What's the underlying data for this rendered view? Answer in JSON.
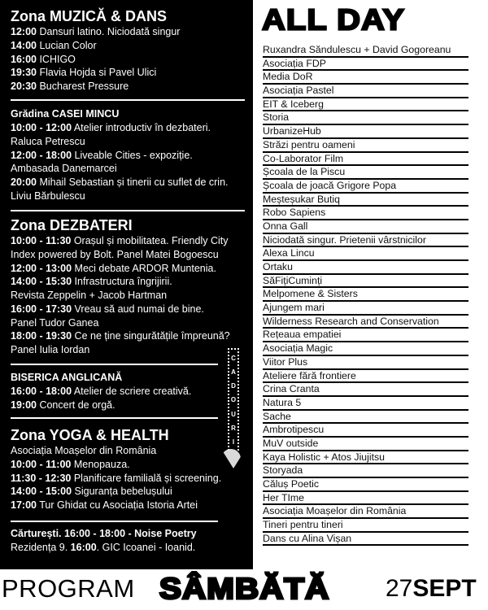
{
  "muzica": {
    "title": "Zona MUZICĂ & DANS",
    "items": [
      {
        "time": "12:00",
        "text": " Dansuri latino. Niciodată singur"
      },
      {
        "time": "14:00",
        "text": " Lucian Color"
      },
      {
        "time": "16:00",
        "text": " ICHIGO"
      },
      {
        "time": "19:30",
        "text": " Flavia Hojda si Pavel Ulici"
      },
      {
        "time": "20:30",
        "text": " Bucharest Pressure"
      }
    ]
  },
  "mincu": {
    "title": "Grădina CASEI MINCU",
    "items": [
      {
        "time": "10:00 - 12:00",
        "text": " Atelier introductiv în dezbateri."
      },
      {
        "time": "",
        "text": "Raluca Petrescu"
      },
      {
        "time": "12:00 - 18:00",
        "text": " Liveable Cities - expoziție."
      },
      {
        "time": "",
        "text": "Ambasada Danemarcei"
      },
      {
        "time": "20:00",
        "text": " Mihail Sebastian și tinerii cu suflet de crin."
      },
      {
        "time": "",
        "text": "Liviu Bărbulescu"
      }
    ]
  },
  "dezbateri": {
    "title": "Zona DEZBATERI",
    "items": [
      {
        "time": "10:00 - 11:30",
        "text": " Orașul și mobilitatea. Friendly City"
      },
      {
        "time": "",
        "text": "Index powered by Bolt. Panel Matei Bogoescu"
      },
      {
        "time": "12:00 - 13:00",
        "text": " Meci debate ARDOR Muntenia."
      },
      {
        "time": "14:00 - 15:30",
        "text": " Infrastructura îngrijirii."
      },
      {
        "time": "",
        "text": "Revista Zeppelin + Jacob Hartman"
      },
      {
        "time": "16:00 - 17:30",
        "text": " Vreau să aud numai de bine."
      },
      {
        "time": "",
        "text": "Panel Tudor Ganea"
      },
      {
        "time": "18:00 - 19:30",
        "text": " Ce ne ține singurătățile împreună?"
      },
      {
        "time": "",
        "text": "Panel Iulia Iordan"
      }
    ]
  },
  "biserica": {
    "title": "BISERICA ANGLICANĂ",
    "items": [
      {
        "time": "16:00 - 18:00",
        "text": " Atelier de scriere creativă."
      },
      {
        "time": "19:00",
        "text": " Concert de orgă."
      }
    ]
  },
  "yoga": {
    "title": "Zona YOGA & HEALTH",
    "items": [
      {
        "time": "",
        "text": "Asociația Moașelor din România"
      },
      {
        "time": "10:00 - 11:00",
        "text": " Menopauza."
      },
      {
        "time": "11:30 - 12:30",
        "text": " Planificare familială și screening."
      },
      {
        "time": "14:00 - 15:00",
        "text": " Siguranța bebelușului"
      },
      {
        "time": "17:00",
        "text": " Tur Ghidat cu Asociația Istoria Artei"
      }
    ]
  },
  "extra": {
    "line1_bold": "Cărturești. 16:00 - 18:00 - Noise Poetry",
    "line2_a": "Rezidența 9. ",
    "line2_time": "16:00",
    "line2_b": ".  GIC Icoanei - Ioanid."
  },
  "gift_letters": [
    "C",
    "A",
    "D",
    "O",
    "U",
    "R",
    "I"
  ],
  "allday": {
    "title": "ALL DAY",
    "items": [
      "Ruxandra Săndulescu + David Gogoreanu",
      "Asociația FDP",
      "Media DoR",
      "Asociația Pastel",
      "EIT & Iceberg",
      "Storia",
      "UrbanizeHub",
      "Străzi pentru oameni",
      "Co-Laborator Film",
      "Școala de la Piscu",
      "Școala de joacă Grigore Popa",
      "Meșteșukar Butiq",
      "Robo Sapiens",
      "Onna Gall",
      "Niciodată singur. Prietenii vârstnicilor",
      "Alexa Lincu",
      "Ortaku",
      "SăFițiCuminți",
      "Melpomene & Sisters",
      "Ajungem mari",
      "Wilderness Research and Conservation",
      "Rețeaua empatiei",
      "Asociația Magic",
      "Viitor Plus",
      "Ateliere fără frontiere",
      "Crina Cranta",
      "Natura 5",
      "Sache",
      "Ambrotipescu",
      "MuV outside",
      "Kaya Holistic + Atos Jiujitsu",
      "Storyada",
      "Căluș Poetic",
      "Her TIme",
      "Asociația Moașelor din România",
      "Tineri pentru tineri",
      "Dans cu Alina Vișan"
    ]
  },
  "footer": {
    "program": "PROGRAM",
    "day": "SÂMBĂTĂ",
    "date_num": "27",
    "date_month": "SEPT"
  },
  "colors": {
    "background": "#000000",
    "text": "#ffffff",
    "accent": "#000000"
  }
}
